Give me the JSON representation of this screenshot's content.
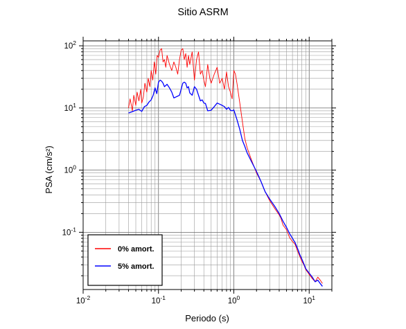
{
  "chart_data": {
    "type": "line",
    "title": "Sitio ASRM",
    "xlabel": "Periodo (s)",
    "ylabel": "PSA (cm/s²)",
    "xscale": "log",
    "yscale": "log",
    "xlim": [
      0.01,
      20
    ],
    "ylim": [
      0.012,
      120
    ],
    "grid": true,
    "legend_position": "bottom-left",
    "x_tick_labels": [
      {
        "value": 0.01,
        "base": "10",
        "exp": "-2"
      },
      {
        "value": 0.1,
        "base": "10",
        "exp": "-1"
      },
      {
        "value": 1,
        "base": "10",
        "exp": "0"
      },
      {
        "value": 10,
        "base": "10",
        "exp": "1"
      }
    ],
    "y_tick_labels": [
      {
        "value": 0.1,
        "base": "10",
        "exp": "-1"
      },
      {
        "value": 1,
        "base": "10",
        "exp": "0"
      },
      {
        "value": 10,
        "base": "10",
        "exp": "1"
      },
      {
        "value": 100,
        "base": "10",
        "exp": "2"
      }
    ],
    "series": [
      {
        "name": "0% amort.",
        "color": "#ff0000",
        "x": [
          0.04,
          0.042,
          0.045,
          0.047,
          0.05,
          0.052,
          0.055,
          0.058,
          0.06,
          0.063,
          0.066,
          0.07,
          0.073,
          0.077,
          0.08,
          0.084,
          0.088,
          0.092,
          0.096,
          0.1,
          0.105,
          0.11,
          0.115,
          0.12,
          0.125,
          0.13,
          0.14,
          0.15,
          0.16,
          0.17,
          0.18,
          0.19,
          0.2,
          0.21,
          0.22,
          0.23,
          0.24,
          0.25,
          0.26,
          0.28,
          0.3,
          0.32,
          0.34,
          0.36,
          0.38,
          0.4,
          0.42,
          0.45,
          0.48,
          0.5,
          0.55,
          0.6,
          0.65,
          0.7,
          0.75,
          0.8,
          0.85,
          0.9,
          0.95,
          1.0,
          1.05,
          1.1,
          1.2,
          1.3,
          1.4,
          1.5,
          1.7,
          2.0,
          2.3,
          2.6,
          3.0,
          3.5,
          4.0,
          4.2,
          4.5,
          5.0,
          5.5,
          6.0,
          6.5,
          7.0,
          7.5,
          8.0,
          8.5,
          9.0,
          9.5,
          10.0,
          11.0,
          12.0,
          13.0,
          14.0,
          15.0
        ],
        "y": [
          10.0,
          14.0,
          9.0,
          16.0,
          11.0,
          18.0,
          13.0,
          20.0,
          12.0,
          15.0,
          25.0,
          18.0,
          30.0,
          22.0,
          40.0,
          28.0,
          55.0,
          35.0,
          70.0,
          65.0,
          85.0,
          90.0,
          55.0,
          60.0,
          45.0,
          70.0,
          50.0,
          40.0,
          55.0,
          45.0,
          35.0,
          60.0,
          85.0,
          90.0,
          60.0,
          75.0,
          45.0,
          70.0,
          50.0,
          80.0,
          28.0,
          60.0,
          80.0,
          35.0,
          40.0,
          28.0,
          22.0,
          50.0,
          30.0,
          25.0,
          35.0,
          45.0,
          25.0,
          30.0,
          20.0,
          38.0,
          22.0,
          18.0,
          14.0,
          40.0,
          35.0,
          25.0,
          12.0,
          6.0,
          3.2,
          2.3,
          1.5,
          0.9,
          0.65,
          0.45,
          0.32,
          0.24,
          0.19,
          0.17,
          0.13,
          0.11,
          0.082,
          0.071,
          0.064,
          0.05,
          0.041,
          0.034,
          0.03,
          0.025,
          0.023,
          0.021,
          0.018,
          0.016,
          0.019,
          0.017,
          0.015
        ]
      },
      {
        "name": "5% amort.",
        "color": "#0000ff",
        "x": [
          0.04,
          0.045,
          0.05,
          0.055,
          0.06,
          0.065,
          0.07,
          0.075,
          0.08,
          0.085,
          0.09,
          0.095,
          0.1,
          0.105,
          0.11,
          0.115,
          0.12,
          0.13,
          0.14,
          0.15,
          0.16,
          0.17,
          0.18,
          0.19,
          0.2,
          0.21,
          0.22,
          0.23,
          0.24,
          0.25,
          0.26,
          0.28,
          0.3,
          0.32,
          0.34,
          0.36,
          0.38,
          0.4,
          0.42,
          0.45,
          0.5,
          0.55,
          0.6,
          0.65,
          0.7,
          0.75,
          0.8,
          0.85,
          0.9,
          0.95,
          1.0,
          1.1,
          1.2,
          1.3,
          1.4,
          1.5,
          1.7,
          2.0,
          2.3,
          2.6,
          3.0,
          3.5,
          4.0,
          4.5,
          5.0,
          5.5,
          6.0,
          6.5,
          7.0,
          7.5,
          8.0,
          8.5,
          9.0,
          10.0,
          11.0,
          12.0,
          13.0,
          14.0,
          15.0
        ],
        "y": [
          8.3,
          8.7,
          9.2,
          9.5,
          8.8,
          10.5,
          11.0,
          12.5,
          13.5,
          16.0,
          21.0,
          17.0,
          26.0,
          28.0,
          27.0,
          25.0,
          22.0,
          24.0,
          21.0,
          18.0,
          14.5,
          15.0,
          15.5,
          16.0,
          20.0,
          25.0,
          26.0,
          25.0,
          21.0,
          22.0,
          17.5,
          16.0,
          22.0,
          20.0,
          16.0,
          13.0,
          13.5,
          12.0,
          11.8,
          9.0,
          9.2,
          10.5,
          12.0,
          11.5,
          11.0,
          10.5,
          9.5,
          10.2,
          9.2,
          9.0,
          9.3,
          6.5,
          4.5,
          3.0,
          2.4,
          1.9,
          1.4,
          0.95,
          0.65,
          0.45,
          0.34,
          0.26,
          0.2,
          0.15,
          0.12,
          0.095,
          0.08,
          0.068,
          0.055,
          0.044,
          0.037,
          0.031,
          0.026,
          0.022,
          0.019,
          0.016,
          0.017,
          0.015,
          0.0135
        ]
      }
    ]
  }
}
